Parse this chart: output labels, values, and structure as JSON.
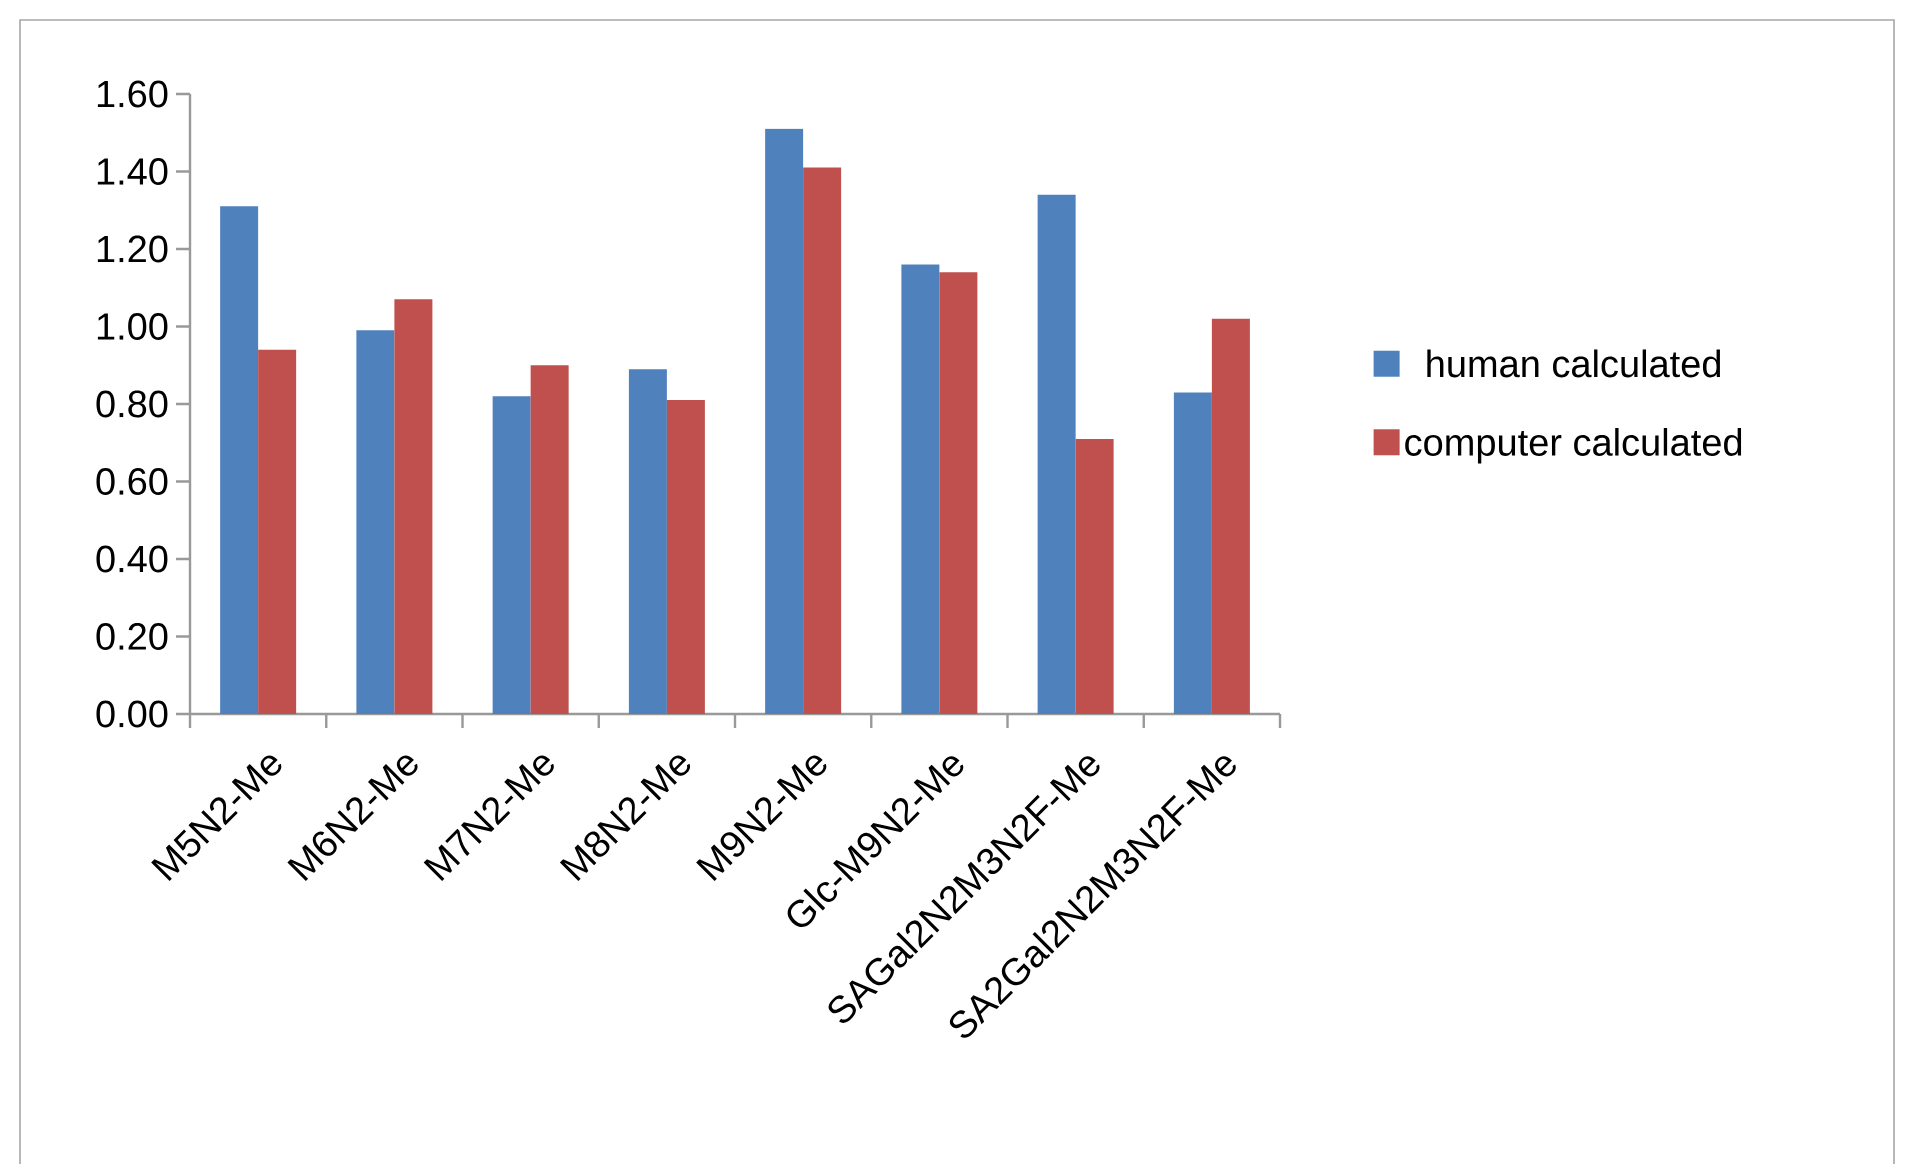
{
  "chart_data": {
    "type": "bar",
    "categories": [
      "M5N2-Me",
      "M6N2-Me",
      "M7N2-Me",
      "M8N2-Me",
      "M9N2-Me",
      "Glc-M9N2-Me",
      "SAGal2N2M3N2F-Me",
      "SA2Gal2N2M3N2F-Me"
    ],
    "series": [
      {
        "name": "human calculated",
        "color": "#4f81bd",
        "values": [
          1.31,
          0.99,
          0.82,
          0.89,
          1.51,
          1.16,
          1.34,
          0.83
        ]
      },
      {
        "name": "computer calculated",
        "color": "#c0504d",
        "values": [
          0.94,
          1.07,
          0.9,
          0.81,
          1.41,
          1.14,
          0.71,
          1.02
        ]
      }
    ],
    "ylim": [
      0,
      1.6
    ],
    "yticks": [
      {
        "value": 0,
        "label": "0.00"
      },
      {
        "value": 0.2,
        "label": "0.20"
      },
      {
        "value": 0.4,
        "label": "0.40"
      },
      {
        "value": 0.6,
        "label": "0.60"
      },
      {
        "value": 0.8,
        "label": "0.80"
      },
      {
        "value": 1.0,
        "label": "1.00"
      },
      {
        "value": 1.2,
        "label": "1.20"
      },
      {
        "value": 1.4,
        "label": "1.40"
      },
      {
        "value": 1.6,
        "label": "1.60"
      }
    ],
    "legend": "right"
  }
}
